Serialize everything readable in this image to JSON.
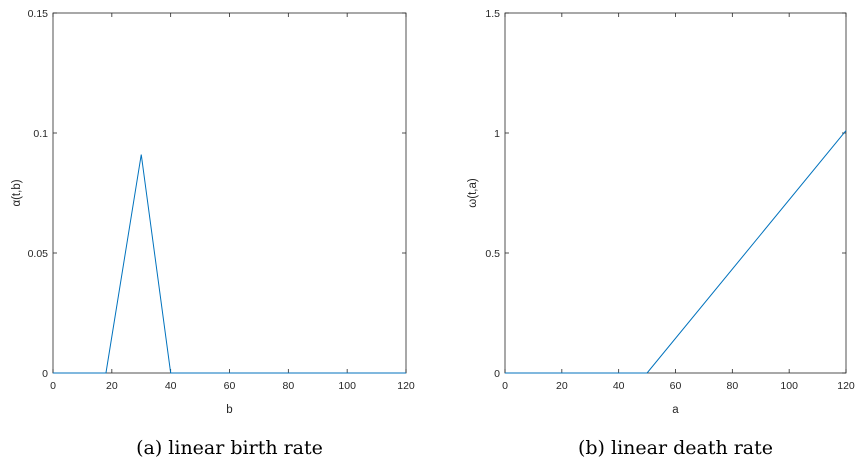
{
  "chart_data": [
    {
      "type": "line",
      "caption": "(a) linear birth rate",
      "xlabel": "b",
      "ylabel": "α(t,b)",
      "xlim": [
        0,
        120
      ],
      "ylim": [
        0,
        0.15
      ],
      "xticks": [
        "0",
        "20",
        "40",
        "60",
        "80",
        "100",
        "120"
      ],
      "yticks": [
        "0",
        "0.05",
        "0.1",
        "0.15"
      ],
      "x": [
        0,
        18,
        30,
        40,
        120
      ],
      "y": [
        0,
        0,
        0.091,
        0,
        0
      ],
      "color": "#0072BD",
      "grid": false
    },
    {
      "type": "line",
      "caption": "(b) linear death rate",
      "xlabel": "a",
      "ylabel": "ω(t,a)",
      "xlim": [
        0,
        120
      ],
      "ylim": [
        0,
        1.5
      ],
      "xticks": [
        "0",
        "20",
        "40",
        "60",
        "80",
        "100",
        "120"
      ],
      "yticks": [
        "0",
        "0.5",
        "1",
        "1.5"
      ],
      "x": [
        0,
        50,
        120
      ],
      "y": [
        0,
        0,
        1.01
      ],
      "color": "#0072BD",
      "grid": false
    }
  ]
}
